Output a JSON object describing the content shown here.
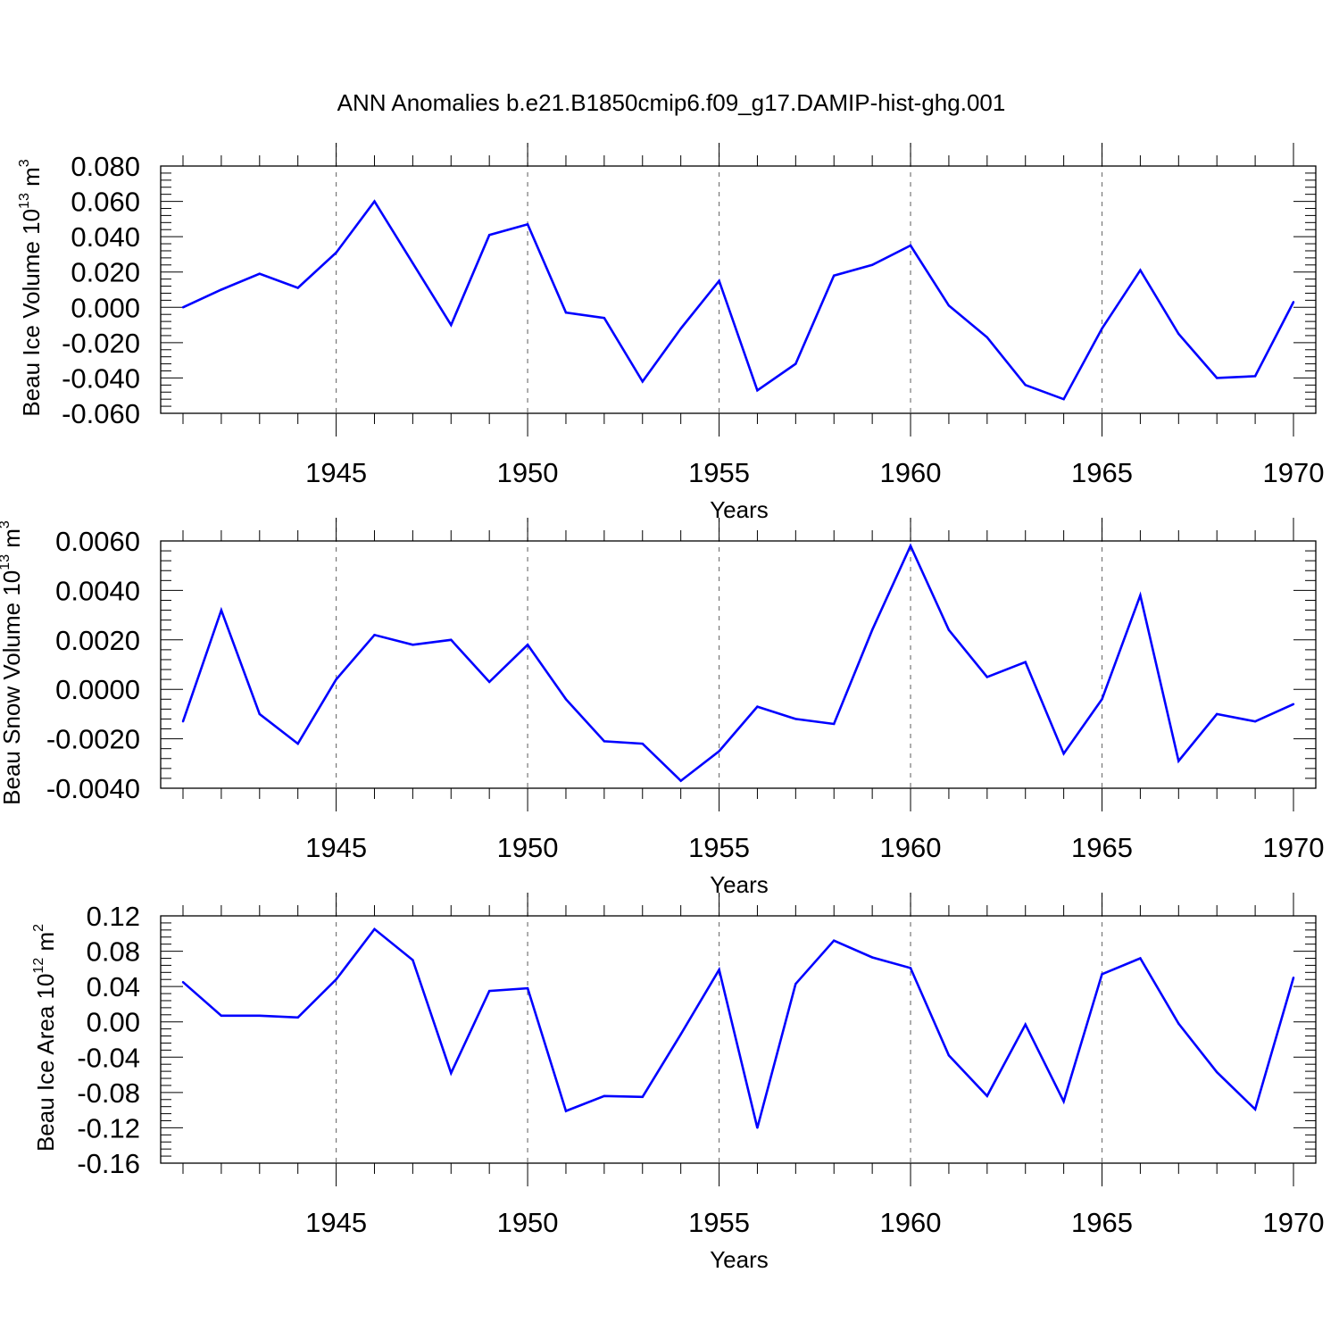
{
  "title": "ANN Anomalies b.e21.B1850cmip6.f09_g17.DAMIP-hist-ghg.001",
  "chart_data": [
    {
      "type": "line",
      "ylabel": "Beau Ice Volume",
      "yunit_base": "10",
      "yunit_exp": "13",
      "yunit_dim": "m",
      "yunit_dim_exp": "3",
      "xlabel": "Years",
      "xlim": [
        1941,
        1970
      ],
      "ylim": [
        -0.06,
        0.08
      ],
      "yticks": [
        "0.080",
        "0.060",
        "0.040",
        "0.020",
        "0.000",
        "-0.020",
        "-0.040",
        "-0.060"
      ],
      "ytick_values": [
        0.08,
        0.06,
        0.04,
        0.02,
        0.0,
        -0.02,
        -0.04,
        -0.06
      ],
      "xticks": [
        "1945",
        "1950",
        "1955",
        "1960",
        "1965",
        "1970"
      ],
      "xtick_values": [
        1945,
        1950,
        1955,
        1960,
        1965,
        1970
      ],
      "line_color": "#0000ff",
      "grid": "vertical dashed at labeled years",
      "x": [
        1941,
        1942,
        1943,
        1944,
        1945,
        1946,
        1947,
        1948,
        1949,
        1950,
        1951,
        1952,
        1953,
        1954,
        1955,
        1956,
        1957,
        1958,
        1959,
        1960,
        1961,
        1962,
        1963,
        1964,
        1965,
        1966,
        1967,
        1968,
        1969,
        1970
      ],
      "values": [
        0.0,
        0.01,
        0.019,
        0.011,
        0.031,
        0.06,
        0.025,
        -0.01,
        0.041,
        0.047,
        -0.003,
        -0.006,
        -0.042,
        -0.012,
        0.015,
        -0.047,
        -0.032,
        0.018,
        0.024,
        0.035,
        0.001,
        -0.017,
        -0.044,
        -0.052,
        -0.012,
        0.021,
        -0.015,
        -0.04,
        -0.039,
        0.003
      ]
    },
    {
      "type": "line",
      "ylabel": "Beau Snow Volume",
      "yunit_base": "10",
      "yunit_exp": "13",
      "yunit_dim": "m",
      "yunit_dim_exp": "3",
      "xlabel": "Years",
      "xlim": [
        1941,
        1970
      ],
      "ylim": [
        -0.004,
        0.006
      ],
      "yticks": [
        "0.0060",
        "0.0040",
        "0.0020",
        "0.0000",
        "-0.0020",
        "-0.0040"
      ],
      "ytick_values": [
        0.006,
        0.004,
        0.002,
        0.0,
        -0.002,
        -0.004
      ],
      "xticks": [
        "1945",
        "1950",
        "1955",
        "1960",
        "1965",
        "1970"
      ],
      "xtick_values": [
        1945,
        1950,
        1955,
        1960,
        1965,
        1970
      ],
      "line_color": "#0000ff",
      "grid": "vertical dashed at labeled years",
      "x": [
        1941,
        1942,
        1943,
        1944,
        1945,
        1946,
        1947,
        1948,
        1949,
        1950,
        1951,
        1952,
        1953,
        1954,
        1955,
        1956,
        1957,
        1958,
        1959,
        1960,
        1961,
        1962,
        1963,
        1964,
        1965,
        1966,
        1967,
        1968,
        1969,
        1970
      ],
      "values": [
        -0.0013,
        0.0032,
        -0.001,
        -0.0022,
        0.0004,
        0.0022,
        0.0018,
        0.002,
        0.0003,
        0.0018,
        -0.0004,
        -0.0021,
        -0.0022,
        -0.0037,
        -0.0025,
        -0.0007,
        -0.0012,
        -0.0014,
        0.0024,
        0.0058,
        0.0024,
        0.0005,
        0.0011,
        -0.0026,
        -0.0004,
        0.0038,
        -0.0029,
        -0.001,
        -0.0013,
        -0.0006
      ]
    },
    {
      "type": "line",
      "ylabel": "Beau Ice Area",
      "yunit_base": "10",
      "yunit_exp": "12",
      "yunit_dim": "m",
      "yunit_dim_exp": "2",
      "xlabel": "Years",
      "xlim": [
        1941,
        1970
      ],
      "ylim": [
        -0.16,
        0.12
      ],
      "yticks": [
        "0.12",
        "0.08",
        "0.04",
        "0.00",
        "-0.04",
        "-0.08",
        "-0.12",
        "-0.16"
      ],
      "ytick_values": [
        0.12,
        0.08,
        0.04,
        0.0,
        -0.04,
        -0.08,
        -0.12,
        -0.16
      ],
      "xticks": [
        "1945",
        "1950",
        "1955",
        "1960",
        "1965",
        "1970"
      ],
      "xtick_values": [
        1945,
        1950,
        1955,
        1960,
        1965,
        1970
      ],
      "line_color": "#0000ff",
      "grid": "vertical dashed at labeled years",
      "x": [
        1941,
        1942,
        1943,
        1944,
        1945,
        1946,
        1947,
        1948,
        1949,
        1950,
        1951,
        1952,
        1953,
        1954,
        1955,
        1956,
        1957,
        1958,
        1959,
        1960,
        1961,
        1962,
        1963,
        1964,
        1965,
        1966,
        1967,
        1968,
        1969,
        1970
      ],
      "values": [
        0.045,
        0.007,
        0.007,
        0.005,
        0.048,
        0.105,
        0.07,
        -0.058,
        0.035,
        0.038,
        -0.101,
        -0.084,
        -0.085,
        -0.014,
        0.059,
        -0.12,
        0.043,
        0.092,
        0.073,
        0.061,
        -0.038,
        -0.084,
        -0.003,
        -0.09,
        0.054,
        0.072,
        -0.002,
        -0.057,
        -0.099,
        0.05
      ]
    }
  ]
}
